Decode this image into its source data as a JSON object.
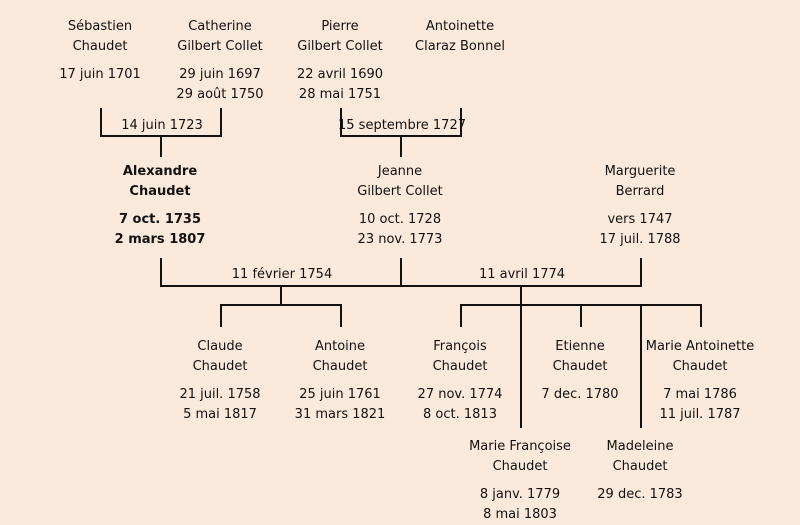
{
  "people": [
    {
      "id": "sebastien",
      "first": "Sébastien",
      "last": "Chaudet",
      "born": "17 juin 1701",
      "died": "",
      "bold": false
    },
    {
      "id": "catherine",
      "first": "Catherine",
      "last": "Gilbert Collet",
      "born": "29 juin 1697",
      "died": "29 août 1750",
      "bold": false
    },
    {
      "id": "pierre",
      "first": "Pierre",
      "last": "Gilbert Collet",
      "born": "22 avril 1690",
      "died": "28 mai 1751",
      "bold": false
    },
    {
      "id": "antoinette",
      "first": "Antoinette",
      "last": "Claraz Bonnel",
      "born": "",
      "died": "",
      "bold": false
    },
    {
      "id": "alexandre",
      "first": "Alexandre",
      "last": "Chaudet",
      "born": "7 oct. 1735",
      "died": "2 mars 1807",
      "bold": true
    },
    {
      "id": "jeanne",
      "first": "Jeanne",
      "last": "Gilbert Collet",
      "born": "10 oct. 1728",
      "died": "23 nov. 1773",
      "bold": false
    },
    {
      "id": "marguerite",
      "first": "Marguerite",
      "last": "Berrard",
      "born": "vers 1747",
      "died": "17 juil. 1788",
      "bold": false
    },
    {
      "id": "claude",
      "first": "Claude",
      "last": "Chaudet",
      "born": "21 juil. 1758",
      "died": "5 mai 1817",
      "bold": false
    },
    {
      "id": "antoine",
      "first": "Antoine",
      "last": "Chaudet",
      "born": "25 juin 1761",
      "died": "31 mars 1821",
      "bold": false
    },
    {
      "id": "francois",
      "first": "François",
      "last": "Chaudet",
      "born": "27 nov. 1774",
      "died": "8 oct. 1813",
      "bold": false
    },
    {
      "id": "etienne",
      "first": "Etienne",
      "last": "Chaudet",
      "born": "7 dec. 1780",
      "died": "",
      "bold": false
    },
    {
      "id": "marie-antoinette",
      "first": "Marie Antoinette",
      "last": "Chaudet",
      "born": "7 mai 1786",
      "died": "11 juil. 1787",
      "bold": false
    },
    {
      "id": "marie-francoise",
      "first": "Marie Françoise",
      "last": "Chaudet",
      "born": "8 janv. 1779",
      "died": "8 mai 1803",
      "bold": false
    },
    {
      "id": "madeleine",
      "first": "Madeleine",
      "last": "Chaudet",
      "born": "29 dec. 1783",
      "died": "",
      "bold": false
    }
  ],
  "marriages": [
    {
      "id": "m1723",
      "date": "14 juin 1723"
    },
    {
      "id": "m1727",
      "date": "15 septembre 1727"
    },
    {
      "id": "m1754",
      "date": "11 février 1754"
    },
    {
      "id": "m1774",
      "date": "11 avril 1774"
    }
  ],
  "colors": {
    "background": "#fbeadb",
    "line": "#111111",
    "text": "#111111"
  }
}
